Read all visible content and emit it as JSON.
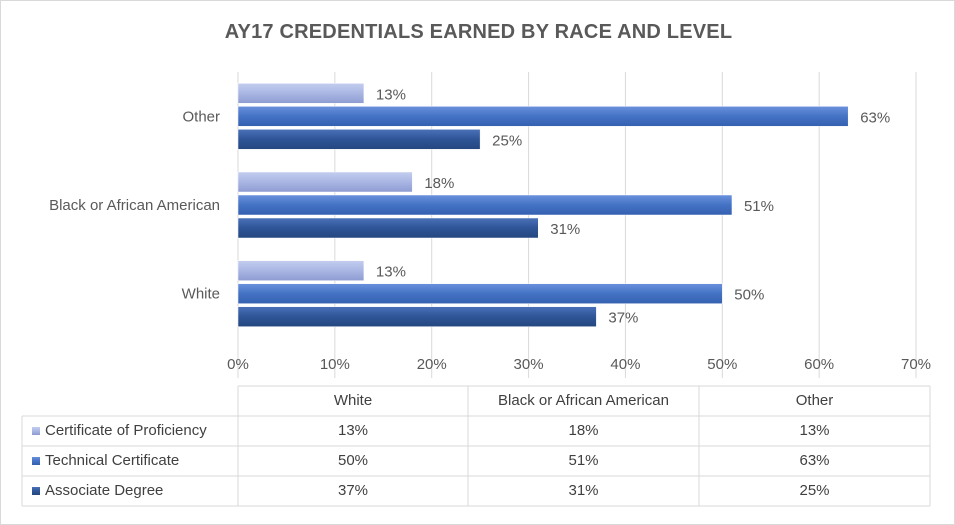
{
  "chart_data": {
    "type": "bar",
    "orientation": "horizontal",
    "title": "AY17 CREDENTIALS EARNED BY RACE AND LEVEL",
    "categories": [
      "White",
      "Black or African American",
      "Other"
    ],
    "series": [
      {
        "name": "Certificate of Proficiency",
        "values": [
          13,
          18,
          13
        ],
        "labels": [
          "13%",
          "18%",
          "13%"
        ],
        "color": "#a9b6e3"
      },
      {
        "name": "Technical Certificate",
        "values": [
          50,
          51,
          63
        ],
        "labels": [
          "50%",
          "51%",
          "63%"
        ],
        "color": "#4472c4"
      },
      {
        "name": "Associate Degree",
        "values": [
          37,
          31,
          25
        ],
        "labels": [
          "37%",
          "31%",
          "25%"
        ],
        "color": "#2f5597"
      }
    ],
    "xlim": [
      0,
      70
    ],
    "xticks": [
      "0%",
      "10%",
      "20%",
      "30%",
      "40%",
      "50%",
      "60%",
      "70%"
    ],
    "grid": true,
    "data_table": true
  }
}
